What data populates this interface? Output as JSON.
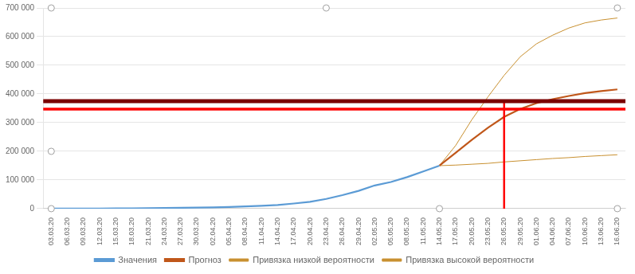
{
  "chart_data": {
    "type": "line",
    "categories": [
      "03.03.20",
      "06.03.20",
      "09.03.20",
      "12.03.20",
      "15.03.20",
      "18.03.20",
      "21.03.20",
      "24.03.20",
      "27.03.20",
      "30.03.20",
      "02.04.20",
      "05.04.20",
      "08.04.20",
      "11.04.20",
      "14.04.20",
      "17.04.20",
      "20.04.20",
      "23.04.20",
      "26.04.20",
      "29.04.20",
      "02.05.20",
      "05.05.20",
      "08.05.20",
      "11.05.20",
      "14.05.20",
      "17.05.20",
      "20.05.20",
      "23.05.20",
      "26.05.20",
      "29.05.20",
      "01.06.20",
      "04.06.20",
      "07.06.20",
      "10.06.20",
      "13.06.20",
      "16.06.20"
    ],
    "series": [
      {
        "name": "Значения",
        "color": "#5B9BD5",
        "values": [
          147,
          200,
          400,
          500,
          900,
          1100,
          1500,
          2300,
          2900,
          3500,
          4200,
          6000,
          8000,
          10000,
          13000,
          18000,
          24000,
          34000,
          47000,
          62000,
          81000,
          93000,
          110000,
          130000,
          150000,
          null,
          null,
          null,
          null,
          null,
          null,
          null,
          null,
          null,
          null,
          null
        ]
      },
      {
        "name": "Прогноз",
        "color": "#C0571A",
        "values": [
          null,
          null,
          null,
          null,
          null,
          null,
          null,
          null,
          null,
          null,
          null,
          null,
          null,
          null,
          null,
          null,
          null,
          null,
          null,
          null,
          null,
          null,
          null,
          null,
          150000,
          195000,
          240000,
          282000,
          320000,
          348000,
          368000,
          382000,
          393000,
          403000,
          410000,
          416000
        ]
      },
      {
        "name": "Привязка низкой вероятности",
        "color": "#C89030",
        "values": [
          null,
          null,
          null,
          null,
          null,
          null,
          null,
          null,
          null,
          null,
          null,
          null,
          null,
          null,
          null,
          null,
          null,
          null,
          null,
          null,
          null,
          null,
          null,
          null,
          150000,
          152000,
          155000,
          158000,
          163000,
          167000,
          171000,
          175000,
          178000,
          182000,
          185000,
          188000
        ]
      },
      {
        "name": "Привязка высокой вероятности",
        "color": "#C89030",
        "values": [
          null,
          null,
          null,
          null,
          null,
          null,
          null,
          null,
          null,
          null,
          null,
          null,
          null,
          null,
          null,
          null,
          null,
          null,
          null,
          null,
          null,
          null,
          null,
          null,
          150000,
          220000,
          310000,
          390000,
          465000,
          530000,
          575000,
          605000,
          630000,
          648000,
          658000,
          665000
        ]
      },
      {
        "type": "line",
        "color": "#FF0000",
        "x": [
          "26.05.20",
          "26.05.20"
        ],
        "values": [
          0,
          375000
        ]
      },
      {
        "type": "scatter",
        "marker": "circle",
        "color": "#A0A0A0",
        "x": [
          "03.03.20",
          "23.04.20",
          "16.06.20",
          "03.03.20",
          "16.06.20",
          "03.03.20",
          "14.05.20"
        ],
        "values": [
          700000,
          700000,
          700000,
          0,
          0,
          200000,
          0
        ]
      }
    ],
    "hlines": [
      {
        "value": 375000,
        "color": "#7B0000"
      },
      {
        "value": 347000,
        "color": "#FF0000"
      }
    ],
    "ylim": [
      0,
      700000
    ],
    "yticks": [
      0,
      {
        "value": 100000,
        "label": "100 000"
      },
      {
        "value": 200000,
        "label": "200 000"
      },
      {
        "value": 300000,
        "label": "300 000"
      },
      {
        "value": 400000,
        "label": "400 000"
      },
      {
        "value": 500000,
        "label": "500 000"
      },
      {
        "value": 600000,
        "label": "600 000"
      },
      {
        "value": 700000,
        "label": "700 000"
      }
    ],
    "grid": true,
    "legend": "bottom"
  }
}
